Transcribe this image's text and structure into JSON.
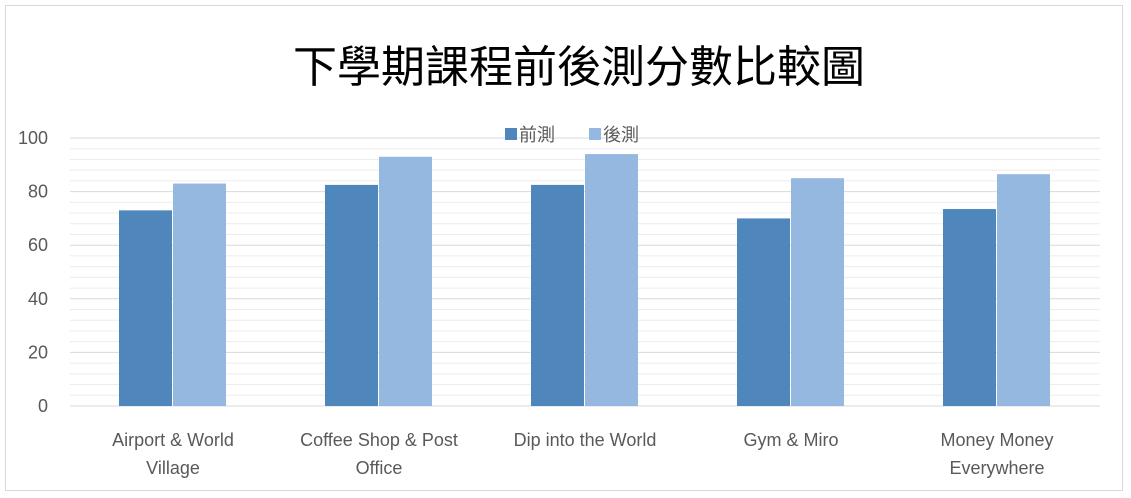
{
  "chart_data": {
    "type": "bar",
    "title": "下學期課程前後測分數比較圖",
    "xlabel": "",
    "ylabel": "",
    "ylim": [
      0,
      100
    ],
    "yticks": [
      0,
      20,
      40,
      60,
      80,
      100
    ],
    "grid": true,
    "legend_position": "top",
    "categories": [
      [
        "Airport & World",
        "Village"
      ],
      [
        "Coffee Shop & Post",
        "Office"
      ],
      [
        "Dip into the World"
      ],
      [
        "Gym & Miro"
      ],
      [
        "Money Money",
        "Everywhere"
      ]
    ],
    "series": [
      {
        "name": "前測",
        "color": "#4f87bd",
        "values": [
          73,
          82.5,
          82.5,
          70,
          73.5
        ]
      },
      {
        "name": "後測",
        "color": "#95b8e0",
        "values": [
          83,
          93,
          94,
          85,
          86.5
        ]
      }
    ]
  }
}
